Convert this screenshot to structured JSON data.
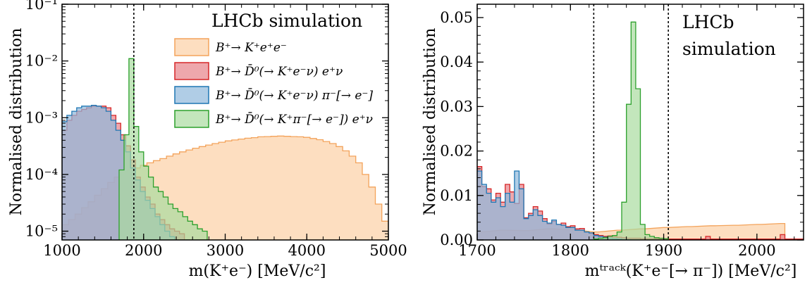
{
  "chart_data": [
    {
      "type": "area",
      "panel": "left",
      "xlabel": "m(K⁺e⁻) [MeV/c²]",
      "ylabel": "Normalised distribution",
      "log_y": true,
      "xlim": [
        1000,
        5000
      ],
      "ylim": [
        7e-06,
        0.1
      ],
      "x_ticks": [
        1000,
        2000,
        3000,
        4000,
        5000
      ],
      "y_ticks": [
        {
          "value": 1e-05,
          "label": "10⁻⁵"
        },
        {
          "value": 0.0001,
          "label": "10⁻⁴"
        },
        {
          "value": 0.001,
          "label": "10⁻³"
        },
        {
          "value": 0.01,
          "label": "10⁻²"
        },
        {
          "value": 0.1,
          "label": "10⁻¹"
        }
      ],
      "annotation": "LHCb simulation",
      "cut_lines": [
        1880
      ],
      "legend_position": "top-right",
      "series": [
        {
          "name": "B⁺→ K⁺e⁺e⁻",
          "fill": "#fdd8b5",
          "edge": "#f3a35b",
          "opacity": 0.85,
          "x": [
            1000,
            1080,
            1160,
            1240,
            1320,
            1400,
            1480,
            1560,
            1640,
            1720,
            1800,
            1880,
            1960,
            2040,
            2120,
            2200,
            2280,
            2360,
            2440,
            2520,
            2600,
            2680,
            2760,
            2840,
            2920,
            3000,
            3080,
            3160,
            3240,
            3320,
            3400,
            3480,
            3560,
            3640,
            3720,
            3800,
            3880,
            3960,
            4040,
            4120,
            4200,
            4280,
            4360,
            4440,
            4520,
            4600,
            4680,
            4760,
            4840,
            4920
          ],
          "values": [
            1.3e-05,
            1.6e-05,
            2e-05,
            2.6e-05,
            3.3e-05,
            4.3e-05,
            5.6e-05,
            7.2e-05,
            9e-05,
            0.00011,
            0.00012,
            0.00013,
            0.000145,
            0.00016,
            0.000175,
            0.00019,
            0.00021,
            0.00023,
            0.00025,
            0.00027,
            0.00029,
            0.00031,
            0.00033,
            0.00035,
            0.00037,
            0.00039,
            0.000405,
            0.00042,
            0.000435,
            0.000445,
            0.00046,
            0.000465,
            0.00047,
            0.000475,
            0.00047,
            0.000465,
            0.00046,
            0.00045,
            0.00043,
            0.00041,
            0.00038,
            0.00035,
            0.00031,
            0.00026,
            0.00021,
            0.00016,
            0.0001,
            6e-05,
            3e-05,
            1.5e-05
          ]
        },
        {
          "name": "B⁺→ D̄⁰(→ K⁺e⁻ν) e⁺ν",
          "fill": "#e88a90",
          "edge": "#d62728",
          "opacity": 0.75,
          "x": [
            1000,
            1060,
            1120,
            1180,
            1240,
            1300,
            1360,
            1420,
            1480,
            1540,
            1600,
            1660,
            1720,
            1780,
            1840,
            1900,
            1960,
            2020,
            2080,
            2140,
            2200,
            2260,
            2320,
            2380,
            2440
          ],
          "values": [
            0.0006,
            0.0009,
            0.0011,
            0.0013,
            0.0014,
            0.0015,
            0.0016,
            0.0016,
            0.0016,
            0.0015,
            0.0011,
            0.0008,
            0.0005,
            0.00032,
            0.00018,
            9e-05,
            6e-05,
            4e-05,
            3e-05,
            2e-05,
            1.6e-05,
            1.3e-05,
            1.1e-05,
            1e-05,
            9e-06
          ]
        },
        {
          "name": "B⁺→ D̄⁰(→ K⁺e⁻ν) π⁻[→ e⁻]",
          "fill": "#8fb8dc",
          "edge": "#1f77b4",
          "opacity": 0.7,
          "x": [
            1000,
            1060,
            1120,
            1180,
            1240,
            1300,
            1360,
            1420,
            1480,
            1540,
            1600,
            1660,
            1720,
            1780,
            1840,
            1900,
            1960,
            2020,
            2080,
            2140,
            2200,
            2260,
            2320
          ],
          "values": [
            0.00085,
            0.0011,
            0.0013,
            0.0015,
            0.0016,
            0.0016,
            0.00165,
            0.0016,
            0.0015,
            0.0013,
            0.0009,
            0.0006,
            0.0004,
            0.00025,
            0.00013,
            8e-05,
            5e-05,
            3.5e-05,
            2.5e-05,
            1.8e-05,
            1.3e-05,
            1e-05,
            8e-06
          ]
        },
        {
          "name": "B⁺→ D̄⁰(→ K⁺π⁻[→ e⁻]) e⁺ν",
          "fill": "#a9dba0",
          "edge": "#2ca02c",
          "opacity": 0.7,
          "x": [
            1700,
            1760,
            1820,
            1880,
            1940,
            2000,
            2060,
            2120,
            2180,
            2240,
            2300,
            2360,
            2420,
            2480,
            2540,
            2600,
            2660,
            2720
          ],
          "values": [
            0.00012,
            0.0005,
            0.011,
            0.0007,
            0.00025,
            0.00014,
            9e-05,
            6e-05,
            5e-05,
            4e-05,
            3e-05,
            2.5e-05,
            2.2e-05,
            1.8e-05,
            1.5e-05,
            1.3e-05,
            1.1e-05,
            1e-05
          ]
        }
      ]
    },
    {
      "type": "area",
      "panel": "right",
      "xlabel": "mᵗʳᵃᶜᵏ(K⁺e⁻[→ π⁻]) [MeV/c²]",
      "ylabel": "Normalised distribution",
      "log_y": false,
      "xlim": [
        1700,
        2050
      ],
      "ylim": [
        0,
        0.053
      ],
      "x_ticks": [
        1700,
        1800,
        1900,
        2000
      ],
      "y_ticks": [
        0.0,
        0.01,
        0.02,
        0.03,
        0.04,
        0.05
      ],
      "annotation": [
        "LHCb",
        "simulation"
      ],
      "cut_lines": [
        1825,
        1905
      ],
      "series": [
        {
          "name": "B⁺→ K⁺e⁺e⁻",
          "fill": "#fdd8b5",
          "edge": "#f3a35b",
          "opacity": 0.85,
          "x": [
            1700,
            1725,
            1750,
            1775,
            1800,
            1825,
            1850,
            1875,
            1900,
            1925,
            1950,
            1975,
            2000,
            2025
          ],
          "values": [
            0.0018,
            0.0022,
            0.0021,
            0.0025,
            0.0023,
            0.0018,
            0.0022,
            0.0025,
            0.0028,
            0.003,
            0.0032,
            0.0033,
            0.0035,
            0.0037
          ]
        },
        {
          "name": "B⁺→ D̄⁰(→ K⁺e⁻ν) e⁺ν",
          "fill": "#e88a90",
          "edge": "#d62728",
          "opacity": 0.75,
          "x": [
            1700,
            1705,
            1710,
            1715,
            1720,
            1725,
            1730,
            1735,
            1740,
            1745,
            1750,
            1755,
            1760,
            1765,
            1770,
            1775,
            1780,
            1785,
            1790,
            1795,
            1800,
            1805,
            1810,
            1815,
            1820,
            1825,
            1830,
            1835,
            1840,
            1845,
            1850,
            1855,
            1860,
            1865,
            1870,
            1875,
            1880,
            1885,
            1890,
            1895,
            1900,
            1905,
            1910,
            1915,
            1920,
            1925,
            1930,
            1935,
            1940,
            1945,
            1950,
            1955,
            1960,
            1965,
            1970,
            1975,
            1980,
            1985,
            1990,
            1995,
            2000,
            2005,
            2010,
            2015,
            2020,
            2025,
            2030,
            2035,
            2040,
            2045
          ],
          "values": [
            0.0165,
            0.012,
            0.0115,
            0.009,
            0.0105,
            0.0085,
            0.0125,
            0.0108,
            0.0082,
            0.0125,
            0.005,
            0.006,
            0.0075,
            0.0065,
            0.0048,
            0.0036,
            0.0042,
            0.0035,
            0.0038,
            0.003,
            0.0032,
            0.0025,
            0.0026,
            0.0018,
            0.0015,
            0.0012,
            0.001,
            0.0008,
            0.0009,
            0.0007,
            0.0006,
            0.0005,
            0.0004,
            0.0004,
            0.0004,
            0.0003,
            0.0003,
            0.0003,
            0.0003,
            0.0002,
            0.0002,
            0.0002,
            0.0002,
            0.0002,
            0.0002,
            0.0002,
            0.0002,
            0.0002,
            0.0002,
            0.0002,
            0.0002,
            0.0002,
            0.0002,
            0.0002,
            0.0002,
            0.0002,
            0.0002,
            0.0002,
            0.0002,
            0.0002,
            0.0002,
            0.0002,
            0.0002,
            0.0002,
            0.0002,
            0.0002,
            0.0002,
            0.0002,
            0.0002,
            0.0002
          ],
          "extra_bins": [
            {
              "x": 1945,
              "value": 0.0008
            },
            {
              "x": 2025,
              "value": 0.0012
            }
          ]
        },
        {
          "name": "B⁺→ D̄⁰(→ K⁺e⁻ν) π⁻[→ e⁻]",
          "fill": "#8fb8dc",
          "edge": "#1f77b4",
          "opacity": 0.7,
          "x": [
            1700,
            1705,
            1710,
            1715,
            1720,
            1725,
            1730,
            1735,
            1740,
            1745,
            1750,
            1755,
            1760,
            1765,
            1770,
            1775,
            1780,
            1785,
            1790,
            1795,
            1800,
            1805,
            1810,
            1815,
            1820,
            1825,
            1830,
            1835,
            1840,
            1845,
            1850,
            1855,
            1860
          ],
          "values": [
            0.0155,
            0.0125,
            0.0105,
            0.0085,
            0.0095,
            0.0075,
            0.0105,
            0.0085,
            0.0155,
            0.0115,
            0.0048,
            0.0055,
            0.0068,
            0.0055,
            0.0042,
            0.0038,
            0.0045,
            0.0035,
            0.0033,
            0.0028,
            0.0028,
            0.0022,
            0.0022,
            0.0018,
            0.0016,
            0.001,
            0.0008,
            0.0006,
            0.0004,
            0.0003,
            0.0002,
            0.0001,
            5e-05
          ]
        },
        {
          "name": "B⁺→ D̄⁰(→ K⁺π⁻[→ e⁻]) e⁺ν",
          "fill": "#a9dba0",
          "edge": "#2ca02c",
          "opacity": 0.7,
          "x": [
            1825,
            1830,
            1835,
            1840,
            1845,
            1850,
            1855,
            1860,
            1865,
            1870,
            1875,
            1880,
            1885,
            1890,
            1895,
            1900
          ],
          "values": [
            0.0002,
            0.0004,
            0.0005,
            0.0008,
            0.001,
            0.0018,
            0.0085,
            0.0305,
            0.049,
            0.034,
            0.0035,
            0.0012,
            0.0008,
            0.0005,
            0.0004,
            0.0003
          ]
        }
      ]
    }
  ]
}
